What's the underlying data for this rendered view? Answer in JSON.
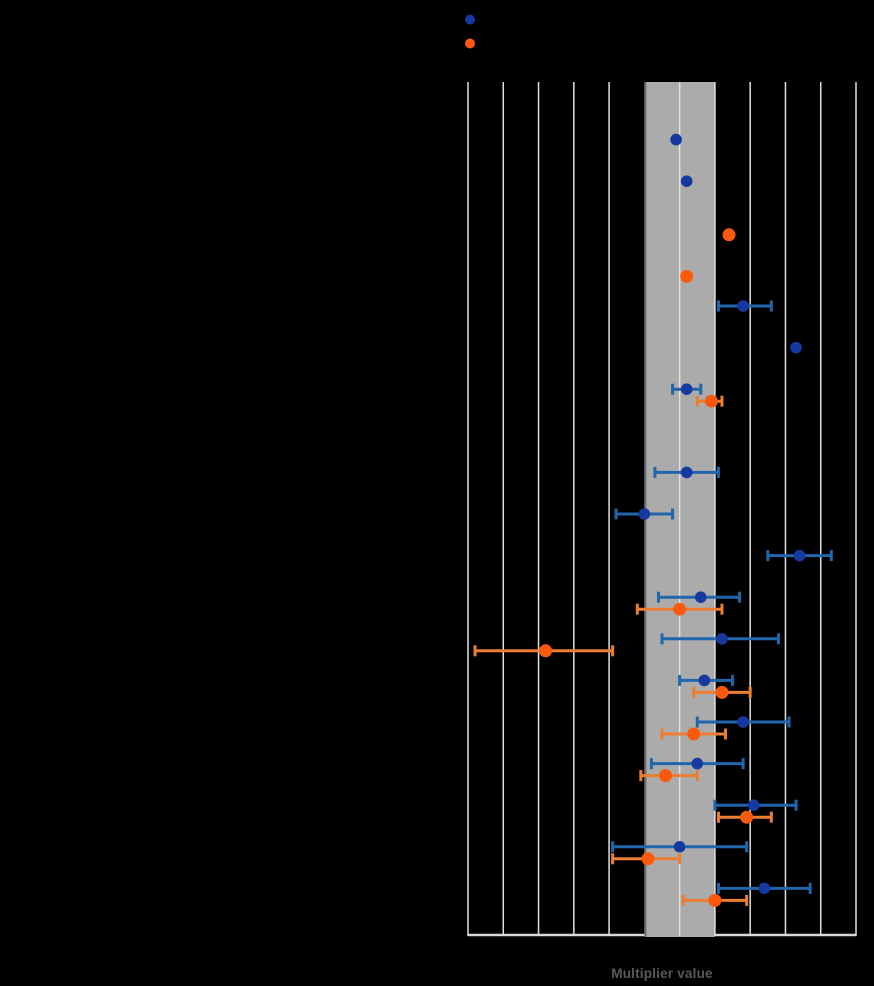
{
  "colors": {
    "background": "#000000",
    "gridline": "#E0E0E0",
    "band_fill": "#ABABAB",
    "band_left_edge": "#6E6E6E",
    "axis_line": "#D9D9D9",
    "xlabel_text": "#595959",
    "blue_marker": "#1639A0",
    "blue_error_bar": "#2166AB",
    "orange_marker": "#FB5A0D",
    "orange_error_bar": "#ED7D31"
  },
  "chart_data": {
    "type": "scatter",
    "subtype": "forest-plot-dots-with-horizontal-error-bars",
    "title": "",
    "xlabel": "Multiplier value",
    "ylabel": "",
    "x_axis": {
      "min": 0.4,
      "max": 1.5,
      "gridline_step": 0.1,
      "tick_labels_visible": false
    },
    "grid": "vertical-only",
    "reference_band": {
      "from": 0.9,
      "to": 1.1
    },
    "legend": {
      "position": "top-left-above-plot",
      "entries": [
        {
          "marker": "dot",
          "color": "#1639A0",
          "label_visible": false
        },
        {
          "marker": "dot",
          "color": "#FB5A0D",
          "label_visible": false
        }
      ]
    },
    "note": "Row category labels, legend labels, chart title and x tick labels are rendered black-on-black and are not visible in the screenshot.",
    "row_count": 20,
    "series": [
      {
        "key": "blue",
        "marker_color": "#1639A0",
        "error_bar_color": "#2166AB"
      },
      {
        "key": "orange",
        "marker_color": "#FB5A0D",
        "error_bar_color": "#ED7D31"
      }
    ],
    "rows": [
      {
        "row": 1
      },
      {
        "row": 2,
        "blue": {
          "value": 0.99,
          "ci": null
        }
      },
      {
        "row": 3,
        "blue": {
          "value": 1.02,
          "ci": null
        }
      },
      {
        "row": 4,
        "orange": {
          "value": 1.14,
          "ci": null
        }
      },
      {
        "row": 5,
        "orange": {
          "value": 1.02,
          "ci": null
        }
      },
      {
        "row": 6,
        "blue": {
          "value": 1.18,
          "ci": [
            1.11,
            1.26
          ]
        }
      },
      {
        "row": 7,
        "blue": {
          "value": 1.33,
          "ci": null
        }
      },
      {
        "row": 8,
        "blue": {
          "value": 1.02,
          "ci": [
            0.98,
            1.06
          ]
        },
        "orange": {
          "value": 1.09,
          "ci": [
            1.05,
            1.12
          ]
        }
      },
      {
        "row": 9
      },
      {
        "row": 10,
        "blue": {
          "value": 1.02,
          "ci": [
            0.93,
            1.11
          ]
        }
      },
      {
        "row": 11,
        "blue": {
          "value": 0.9,
          "ci": [
            0.82,
            0.98
          ]
        }
      },
      {
        "row": 12,
        "blue": {
          "value": 1.34,
          "ci": [
            1.25,
            1.43
          ]
        }
      },
      {
        "row": 13,
        "blue": {
          "value": 1.06,
          "ci": [
            0.94,
            1.17
          ]
        },
        "orange": {
          "value": 1.0,
          "ci": [
            0.88,
            1.12
          ]
        }
      },
      {
        "row": 14,
        "blue": {
          "value": 1.12,
          "ci": [
            0.95,
            1.28
          ]
        },
        "orange": {
          "value": 0.62,
          "ci": [
            0.42,
            0.81
          ]
        }
      },
      {
        "row": 15,
        "blue": {
          "value": 1.07,
          "ci": [
            1.0,
            1.15
          ]
        },
        "orange": {
          "value": 1.12,
          "ci": [
            1.04,
            1.2
          ]
        }
      },
      {
        "row": 16,
        "blue": {
          "value": 1.18,
          "ci": [
            1.05,
            1.31
          ]
        },
        "orange": {
          "value": 1.04,
          "ci": [
            0.95,
            1.13
          ]
        }
      },
      {
        "row": 17,
        "blue": {
          "value": 1.05,
          "ci": [
            0.92,
            1.18
          ]
        },
        "orange": {
          "value": 0.96,
          "ci": [
            0.89,
            1.05
          ]
        }
      },
      {
        "row": 18,
        "blue": {
          "value": 1.21,
          "ci": [
            1.1,
            1.33
          ]
        },
        "orange": {
          "value": 1.19,
          "ci": [
            1.11,
            1.26
          ]
        }
      },
      {
        "row": 19,
        "blue": {
          "value": 1.0,
          "ci": [
            0.81,
            1.19
          ]
        },
        "orange": {
          "value": 0.91,
          "ci": [
            0.81,
            1.0
          ]
        }
      },
      {
        "row": 20,
        "blue": {
          "value": 1.24,
          "ci": [
            1.11,
            1.37
          ]
        },
        "orange": {
          "value": 1.1,
          "ci": [
            1.01,
            1.19
          ]
        }
      }
    ]
  }
}
